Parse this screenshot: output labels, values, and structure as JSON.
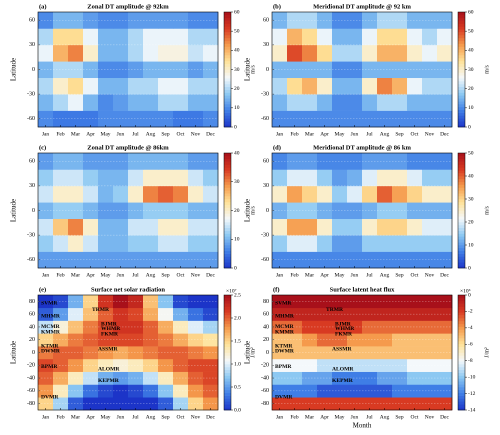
{
  "months": [
    "Jan",
    "Feb",
    "Mar",
    "Apr",
    "May",
    "Jun",
    "Jul",
    "Aug",
    "Sep",
    "Oct",
    "Nov",
    "Dec"
  ],
  "colormap": [
    "#1c34c8",
    "#3f7ee6",
    "#8cc8f2",
    "#f4f8fb",
    "#ffe39a",
    "#f59a4c",
    "#d83a22",
    "#a8101a"
  ],
  "chart_data": [
    {
      "type": "heatmap",
      "panel_label": "(a)",
      "title": "Zonal DT amplitude @ 92km",
      "ylabel": "Latitude",
      "cunit": "m/s",
      "y": [
        -60,
        -40,
        -20,
        0,
        20,
        40,
        60
      ],
      "ylim": [
        -70,
        70
      ],
      "yticks": [
        -60,
        -30,
        0,
        30,
        60
      ],
      "clim": [
        0,
        60
      ],
      "cticks": [
        0,
        10,
        20,
        30,
        40,
        50,
        60
      ],
      "z": [
        [
          10,
          8,
          8,
          8,
          10,
          10,
          10,
          10,
          10,
          8,
          8,
          10
        ],
        [
          15,
          20,
          25,
          15,
          10,
          12,
          15,
          15,
          20,
          20,
          15,
          15
        ],
        [
          20,
          30,
          35,
          25,
          15,
          15,
          20,
          20,
          25,
          25,
          20,
          20
        ],
        [
          15,
          20,
          20,
          15,
          10,
          10,
          12,
          15,
          15,
          15,
          12,
          15
        ],
        [
          25,
          40,
          45,
          30,
          15,
          15,
          20,
          25,
          28,
          28,
          22,
          25
        ],
        [
          20,
          35,
          35,
          25,
          15,
          15,
          20,
          25,
          25,
          25,
          20,
          20
        ],
        [
          10,
          15,
          15,
          12,
          10,
          10,
          12,
          12,
          12,
          12,
          10,
          10
        ]
      ]
    },
    {
      "type": "heatmap",
      "panel_label": "(b)",
      "title": "Meridional DT amplitude @ 92 km",
      "ylabel": "Latitude",
      "cunit": "m/s",
      "y": [
        -60,
        -40,
        -20,
        0,
        20,
        40,
        60
      ],
      "ylim": [
        -70,
        70
      ],
      "yticks": [
        -60,
        -30,
        0,
        30,
        60
      ],
      "clim": [
        0,
        60
      ],
      "cticks": [
        0,
        10,
        20,
        30,
        40,
        50,
        60
      ],
      "z": [
        [
          10,
          10,
          10,
          10,
          10,
          10,
          10,
          10,
          10,
          10,
          10,
          10
        ],
        [
          15,
          20,
          20,
          15,
          10,
          10,
          15,
          20,
          20,
          15,
          15,
          15
        ],
        [
          20,
          35,
          40,
          30,
          15,
          15,
          30,
          45,
          40,
          25,
          20,
          20
        ],
        [
          15,
          15,
          15,
          15,
          10,
          10,
          15,
          15,
          15,
          15,
          15,
          15
        ],
        [
          30,
          50,
          45,
          35,
          20,
          20,
          30,
          40,
          40,
          30,
          25,
          30
        ],
        [
          25,
          40,
          35,
          25,
          15,
          15,
          25,
          35,
          35,
          25,
          20,
          25
        ],
        [
          15,
          20,
          20,
          15,
          10,
          10,
          15,
          20,
          20,
          15,
          15,
          15
        ]
      ]
    },
    {
      "type": "heatmap",
      "panel_label": "(c)",
      "title": "Zonal DT amplitude @ 86km",
      "ylabel": "Latitude",
      "cunit": "m/s",
      "y": [
        -60,
        -40,
        -20,
        0,
        20,
        40,
        60
      ],
      "ylim": [
        -70,
        70
      ],
      "yticks": [
        -60,
        -30,
        0,
        30,
        60
      ],
      "clim": [
        0,
        40
      ],
      "cticks": [
        0,
        10,
        20,
        30,
        40
      ],
      "z": [
        [
          8,
          8,
          8,
          8,
          8,
          8,
          8,
          8,
          8,
          8,
          8,
          8
        ],
        [
          12,
          15,
          20,
          15,
          10,
          10,
          12,
          12,
          15,
          15,
          12,
          12
        ],
        [
          15,
          25,
          30,
          20,
          10,
          10,
          15,
          15,
          20,
          20,
          15,
          15
        ],
        [
          10,
          12,
          12,
          10,
          8,
          8,
          10,
          12,
          12,
          12,
          10,
          10
        ],
        [
          15,
          20,
          20,
          15,
          10,
          12,
          20,
          30,
          32,
          30,
          20,
          15
        ],
        [
          12,
          15,
          15,
          12,
          10,
          10,
          15,
          20,
          20,
          20,
          15,
          12
        ],
        [
          8,
          10,
          10,
          8,
          8,
          8,
          10,
          10,
          10,
          10,
          8,
          8
        ]
      ]
    },
    {
      "type": "heatmap",
      "panel_label": "(d)",
      "title": "Meridional DT amplitude @ 86 km",
      "ylabel": "Latitude",
      "cunit": "m/s",
      "y": [
        -60,
        -40,
        -20,
        0,
        20,
        40,
        60
      ],
      "ylim": [
        -70,
        70
      ],
      "yticks": [
        -60,
        -30,
        0,
        30,
        60
      ],
      "clim": [
        0,
        50
      ],
      "cticks": [
        0,
        10,
        20,
        30,
        40,
        50
      ],
      "z": [
        [
          8,
          8,
          8,
          8,
          8,
          8,
          8,
          8,
          8,
          8,
          8,
          8
        ],
        [
          15,
          20,
          20,
          15,
          10,
          10,
          15,
          15,
          15,
          15,
          15,
          15
        ],
        [
          25,
          35,
          35,
          25,
          15,
          15,
          25,
          30,
          30,
          25,
          20,
          20
        ],
        [
          12,
          15,
          15,
          12,
          10,
          10,
          12,
          15,
          15,
          12,
          12,
          12
        ],
        [
          25,
          35,
          30,
          25,
          15,
          20,
          30,
          40,
          35,
          30,
          25,
          25
        ],
        [
          15,
          20,
          20,
          15,
          10,
          12,
          20,
          25,
          25,
          20,
          15,
          15
        ],
        [
          8,
          10,
          10,
          8,
          8,
          8,
          10,
          10,
          10,
          8,
          8,
          8
        ]
      ]
    },
    {
      "type": "heatmap",
      "panel_label": "(e)",
      "title": "Surface net solar radiation",
      "ylabel": "Latitude",
      "cunit": "J/m²",
      "cscale": "×10⁷",
      "y": [
        -80,
        -60,
        -40,
        -20,
        0,
        20,
        40,
        60,
        80
      ],
      "ylim": [
        -90,
        90
      ],
      "yticks": [
        -80,
        -60,
        -40,
        -20,
        0,
        20,
        40,
        60,
        80
      ],
      "clim": [
        0,
        2.5
      ],
      "cticks": [
        {
          "value": 0,
          "label": "0.0"
        },
        0.5,
        {
          "value": 1,
          "label": "1.0"
        },
        1.5,
        {
          "value": 2,
          "label": "2.0"
        },
        2.5
      ],
      "z": [
        [
          1.5,
          0.8,
          0.2,
          0,
          0,
          0,
          0,
          0,
          0.2,
          0.8,
          1.5,
          1.8
        ],
        [
          1.8,
          1.3,
          0.7,
          0.3,
          0.1,
          0,
          0.1,
          0.3,
          0.7,
          1.3,
          1.8,
          2.0
        ],
        [
          2.0,
          1.7,
          1.3,
          0.9,
          0.6,
          0.5,
          0.6,
          0.9,
          1.3,
          1.7,
          2.0,
          2.1
        ],
        [
          2.1,
          2.0,
          1.8,
          1.5,
          1.3,
          1.2,
          1.3,
          1.5,
          1.8,
          2.0,
          2.1,
          2.1
        ],
        [
          1.9,
          2.0,
          2.0,
          1.9,
          1.8,
          1.7,
          1.8,
          1.9,
          2.0,
          2.0,
          1.9,
          1.8
        ],
        [
          1.5,
          1.7,
          1.9,
          2.0,
          2.1,
          2.1,
          2.1,
          2.0,
          1.9,
          1.7,
          1.5,
          1.4
        ],
        [
          0.9,
          1.2,
          1.6,
          1.9,
          2.1,
          2.2,
          2.2,
          2.0,
          1.7,
          1.3,
          1.0,
          0.8
        ],
        [
          0.2,
          0.5,
          1.0,
          1.6,
          2.0,
          2.2,
          2.1,
          1.7,
          1.1,
          0.6,
          0.3,
          0.1
        ],
        [
          0,
          0.1,
          0.6,
          1.5,
          2.2,
          2.5,
          2.3,
          1.6,
          0.7,
          0.1,
          0,
          0
        ]
      ],
      "stations": [
        "SVMR",
        "TRMR",
        "MHMR",
        "BJMR",
        "WHMR",
        "FKMR",
        "MCMR",
        "KMMR",
        "KTMR",
        "ASSMR",
        "DWMR",
        "BPMR",
        "ALOMR",
        "KEPMR",
        "DVMR"
      ]
    },
    {
      "type": "heatmap",
      "panel_label": "(f)",
      "title": "Surface latent heat flux",
      "ylabel": "Latitude",
      "xlabel": "Month",
      "cunit": "J/m²",
      "cscale": "×10⁶",
      "y": [
        -80,
        -60,
        -40,
        -20,
        0,
        20,
        40,
        60,
        80
      ],
      "ylim": [
        -90,
        90
      ],
      "yticks": [
        -80,
        -60,
        -40,
        -20,
        0,
        20,
        40,
        60,
        80
      ],
      "clim": [
        -14,
        0
      ],
      "cticks": [
        -14,
        -12,
        -10,
        -8,
        -6,
        -4,
        -2,
        0
      ],
      "z": [
        [
          -2,
          -2,
          -2,
          -2,
          -2,
          -2,
          -2,
          -2,
          -2,
          -2,
          -2,
          -2
        ],
        [
          -12,
          -12,
          -12,
          -13,
          -13,
          -13,
          -13,
          -13,
          -12,
          -12,
          -12,
          -12
        ],
        [
          -10,
          -10,
          -11,
          -11,
          -12,
          -12,
          -12,
          -11,
          -11,
          -10,
          -10,
          -10
        ],
        [
          -8,
          -8,
          -8,
          -9,
          -9,
          -9,
          -9,
          -9,
          -9,
          -8,
          -8,
          -8
        ],
        [
          -5,
          -5,
          -5,
          -5,
          -5,
          -5,
          -5,
          -5,
          -5,
          -5,
          -5,
          -5
        ],
        [
          -5,
          -5,
          -4,
          -3,
          -3,
          -4,
          -4,
          -4,
          -5,
          -5,
          -5,
          -5
        ],
        [
          -3,
          -3,
          -2,
          -2,
          -2,
          -2,
          -3,
          -3,
          -3,
          -3,
          -3,
          -3
        ],
        [
          -1,
          -1,
          -1,
          -1,
          -1,
          -1,
          -1,
          -1,
          -1,
          -1,
          -1,
          -1
        ],
        [
          0,
          0,
          0,
          0,
          0,
          0,
          0,
          0,
          0,
          0,
          0,
          0
        ]
      ],
      "stations": [
        "SVMR",
        "TRMR",
        "MHMR",
        "BJMR",
        "WHMR",
        "FKMR",
        "MCMR",
        "KMMR",
        "KTMR",
        "ASSMR",
        "DWMR",
        "BPMR",
        "ALOMR",
        "KEPMR",
        "DVMR"
      ]
    }
  ]
}
